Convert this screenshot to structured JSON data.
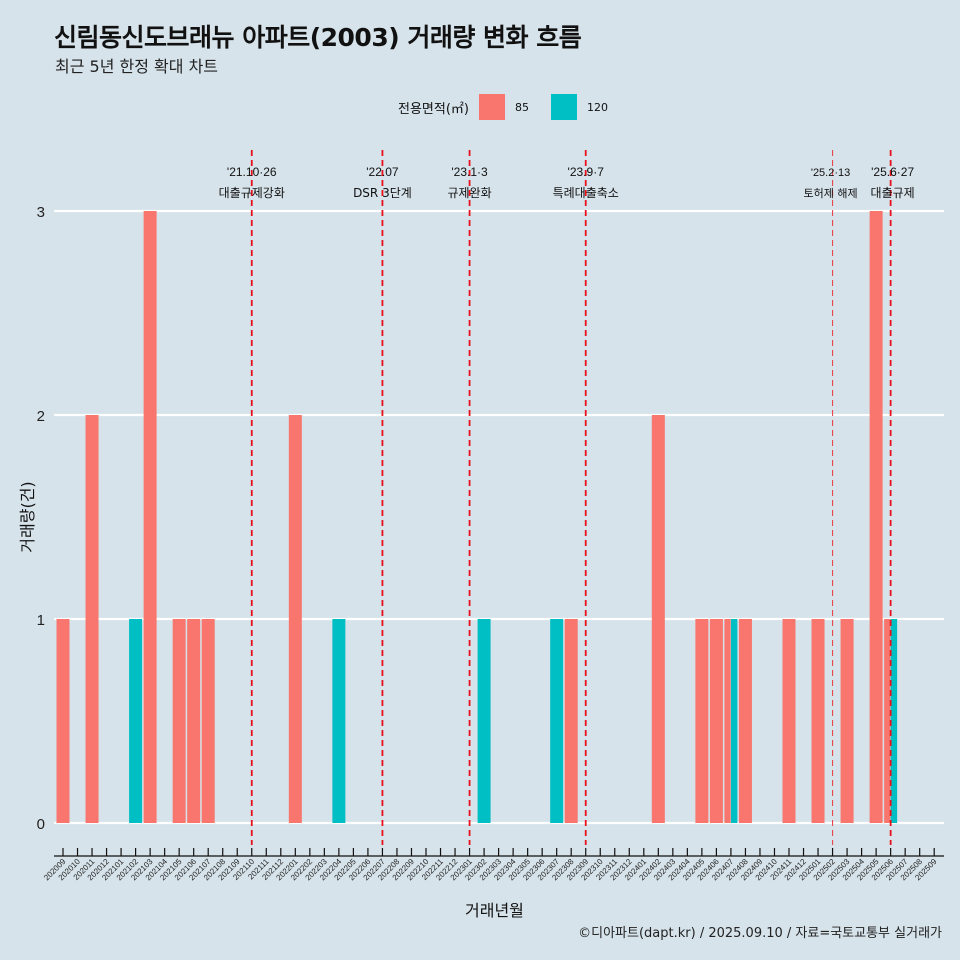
{
  "header": {
    "title": "신림동신도브래뉴 아파트(2003) 거래량 변화 흐름",
    "subtitle": "최근 5년 한정 확대 차트"
  },
  "legend": {
    "title": "전용면적(㎡)",
    "items": [
      {
        "label": "85",
        "color": "#f8766d"
      },
      {
        "label": "120",
        "color": "#00bfc4"
      }
    ]
  },
  "footer": "©디아파트(dapt.kr) / 2025.09.10 / 자료=국토교통부 실거래가",
  "chart_data": {
    "type": "bar",
    "title": "신림동신도브래뉴 아파트(2003) 거래량 변화 흐름",
    "subtitle": "최근 5년 한정 확대 차트",
    "xlabel": "거래년월",
    "ylabel": "거래량(건)",
    "ylim": [
      0,
      3
    ],
    "yticks": [
      0,
      1,
      2,
      3
    ],
    "grid": "horizontal",
    "legend_position": "top",
    "categories": [
      "202009",
      "202010",
      "202011",
      "202012",
      "202101",
      "202102",
      "202103",
      "202104",
      "202105",
      "202106",
      "202107",
      "202108",
      "202109",
      "202110",
      "202111",
      "202112",
      "202201",
      "202202",
      "202203",
      "202204",
      "202205",
      "202206",
      "202207",
      "202208",
      "202209",
      "202210",
      "202211",
      "202212",
      "202301",
      "202302",
      "202303",
      "202304",
      "202305",
      "202306",
      "202307",
      "202308",
      "202309",
      "202310",
      "202311",
      "202312",
      "202401",
      "202402",
      "202403",
      "202404",
      "202405",
      "202406",
      "202407",
      "202408",
      "202409",
      "202410",
      "202411",
      "202412",
      "202501",
      "202502",
      "202503",
      "202504",
      "202505",
      "202506",
      "202507",
      "202508",
      "202509"
    ],
    "series": [
      {
        "name": "85",
        "color": "#f8766d",
        "values": {
          "202009": 1,
          "202011": 2,
          "202103": 3,
          "202105": 1,
          "202106": 1,
          "202107": 1,
          "202201": 2,
          "202308": 1,
          "202402": 2,
          "202405": 1,
          "202406": 1,
          "202407": 1,
          "202408": 1,
          "202411": 1,
          "202501": 1,
          "202503": 1,
          "202505": 3,
          "202506": 1
        }
      },
      {
        "name": "120",
        "color": "#00bfc4",
        "values": {
          "202102": 1,
          "202204": 1,
          "202302": 1,
          "202307": 1,
          "202407": 1,
          "202506": 1
        }
      }
    ],
    "annotations": [
      {
        "month": "202110",
        "date": "'21.10·26",
        "label": "대출규제강화",
        "style": "dashed"
      },
      {
        "month": "202207",
        "date": "'22.07",
        "label": "DSR 3단계",
        "style": "dashed"
      },
      {
        "month": "202301",
        "date": "'23.1·3",
        "label": "규제완화",
        "style": "dashed"
      },
      {
        "month": "202309",
        "date": "'23.9·7",
        "label": "특례대출축소",
        "style": "dashed"
      },
      {
        "month": "202502",
        "date": "'25.2·13",
        "label": "토허제 해제",
        "style": "dashed-thin"
      },
      {
        "month": "202506",
        "date": "'25.6·27",
        "label": "대출규제",
        "style": "dashed"
      }
    ]
  }
}
